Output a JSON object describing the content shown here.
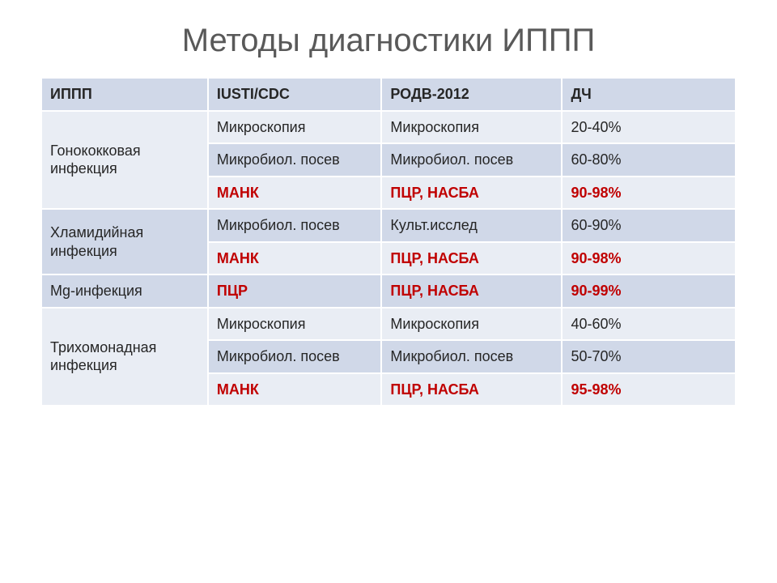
{
  "title": "Методы диагностики ИППП",
  "header_bg": "#d0d8e8",
  "row_bg_a": "#e9edf4",
  "row_bg_b": "#d0d8e8",
  "text_color": "#262626",
  "highlight_color": "#c00000",
  "border_color": "#ffffff",
  "title_color": "#595959",
  "title_fontsize": 40,
  "cell_fontsize": 18,
  "columns": [
    "ИППП",
    "IUSTI/CDC",
    "РОДВ-2012",
    "ДЧ"
  ],
  "rows": [
    {
      "group": "Гонококковая инфекция",
      "span": 3,
      "shade": "a",
      "c1": "Микроскопия",
      "c1_hi": false,
      "c1_b": false,
      "c2": "Микроскопия",
      "c2_hi": false,
      "c2_b": false,
      "c3": "20-40%",
      "c3_hi": false,
      "c3_b": false
    },
    {
      "shade": "b",
      "c1": "Микробиол. посев",
      "c1_hi": false,
      "c1_b": false,
      "c2": "Микробиол. посев",
      "c2_hi": false,
      "c2_b": false,
      "c3": "60-80%",
      "c3_hi": false,
      "c3_b": false
    },
    {
      "shade": "a",
      "c1": "МАНК",
      "c1_hi": true,
      "c1_b": true,
      "c2": "ПЦР, НАСБА",
      "c2_hi": true,
      "c2_b": true,
      "c3": "90-98%",
      "c3_hi": true,
      "c3_b": true
    },
    {
      "group": "Хламидийная инфекция",
      "span": 2,
      "shade": "b",
      "c1": "Микробиол. посев",
      "c1_hi": false,
      "c1_b": false,
      "c2": "Культ.исслед",
      "c2_hi": false,
      "c2_b": false,
      "c3": "60-90%",
      "c3_hi": false,
      "c3_b": false
    },
    {
      "shade": "a",
      "c1": "МАНК",
      "c1_hi": true,
      "c1_b": true,
      "c2": "ПЦР, НАСБА",
      "c2_hi": true,
      "c2_b": true,
      "c3": "90-98%",
      "c3_hi": true,
      "c3_b": true
    },
    {
      "group": "Mg-инфекция",
      "span": 1,
      "shade": "b",
      "c1": "ПЦР",
      "c1_hi": true,
      "c1_b": true,
      "c2": "ПЦР, НАСБА",
      "c2_hi": true,
      "c2_b": true,
      "c3": "90-99%",
      "c3_hi": true,
      "c3_b": true
    },
    {
      "group": "Трихомонадная инфекция",
      "span": 3,
      "shade": "a",
      "c1": "Микроскопия",
      "c1_hi": false,
      "c1_b": false,
      "c2": "Микроскопия",
      "c2_hi": false,
      "c2_b": false,
      "c3": "40-60%",
      "c3_hi": false,
      "c3_b": false
    },
    {
      "shade": "b",
      "c1": "Микробиол. посев",
      "c1_hi": false,
      "c1_b": false,
      "c2": "Микробиол. посев",
      "c2_hi": false,
      "c2_b": false,
      "c3": "50-70%",
      "c3_hi": false,
      "c3_b": false
    },
    {
      "shade": "a",
      "c1": "МАНК",
      "c1_hi": true,
      "c1_b": true,
      "c2": "ПЦР, НАСБА",
      "c2_hi": true,
      "c2_b": true,
      "c3": "95-98%",
      "c3_hi": true,
      "c3_b": true
    }
  ]
}
